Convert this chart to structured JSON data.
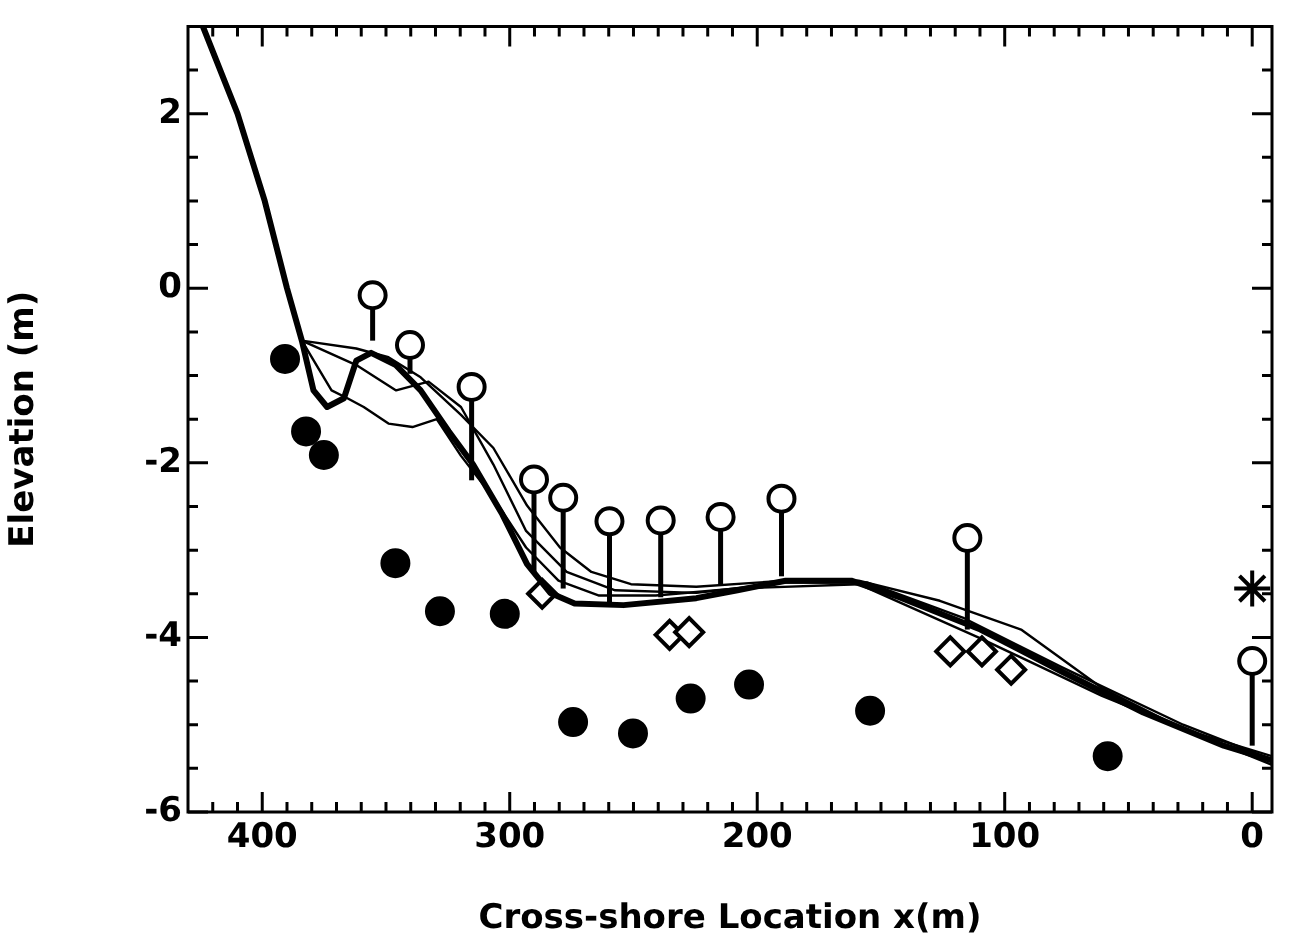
{
  "chart_data": {
    "type": "scatter",
    "xlabel": "Cross-shore Location x(m)",
    "ylabel": "Elevation (m)",
    "xlim": [
      430,
      -8
    ],
    "ylim": [
      -6,
      3
    ],
    "xticks": [
      {
        "value": 420,
        "label": null
      },
      {
        "value": 410,
        "label": null
      },
      400,
      {
        "value": 390,
        "label": null
      },
      {
        "value": 380,
        "label": null
      },
      {
        "value": 370,
        "label": null
      },
      {
        "value": 360,
        "label": null
      },
      {
        "value": 350,
        "label": null
      },
      {
        "value": 340,
        "label": null
      },
      {
        "value": 330,
        "label": null
      },
      {
        "value": 320,
        "label": null
      },
      {
        "value": 310,
        "label": null
      },
      300,
      {
        "value": 290,
        "label": null
      },
      {
        "value": 280,
        "label": null
      },
      {
        "value": 270,
        "label": null
      },
      {
        "value": 260,
        "label": null
      },
      {
        "value": 250,
        "label": null
      },
      {
        "value": 240,
        "label": null
      },
      {
        "value": 230,
        "label": null
      },
      {
        "value": 220,
        "label": null
      },
      {
        "value": 210,
        "label": null
      },
      200,
      {
        "value": 190,
        "label": null
      },
      {
        "value": 180,
        "label": null
      },
      {
        "value": 170,
        "label": null
      },
      {
        "value": 160,
        "label": null
      },
      {
        "value": 150,
        "label": null
      },
      {
        "value": 140,
        "label": null
      },
      {
        "value": 130,
        "label": null
      },
      {
        "value": 120,
        "label": null
      },
      {
        "value": 110,
        "label": null
      },
      100,
      {
        "value": 90,
        "label": null
      },
      {
        "value": 80,
        "label": null
      },
      {
        "value": 70,
        "label": null
      },
      {
        "value": 60,
        "label": null
      },
      {
        "value": 50,
        "label": null
      },
      {
        "value": 40,
        "label": null
      },
      {
        "value": 30,
        "label": null
      },
      {
        "value": 20,
        "label": null
      },
      {
        "value": 10,
        "label": null
      },
      0
    ],
    "yticks": [
      -6,
      {
        "value": -5.5,
        "label": null
      },
      {
        "value": -5,
        "label": null
      },
      {
        "value": -4.5,
        "label": null
      },
      -4,
      {
        "value": -3.5,
        "label": null
      },
      {
        "value": -3,
        "label": null
      },
      {
        "value": -2.5,
        "label": null
      },
      -2,
      {
        "value": -1.5,
        "label": null
      },
      {
        "value": -1,
        "label": null
      },
      {
        "value": -0.5,
        "label": null
      },
      0,
      {
        "value": 0.5,
        "label": null
      },
      {
        "value": 1,
        "label": null
      },
      {
        "value": 1.5,
        "label": null
      },
      2,
      {
        "value": 2.5,
        "label": null
      }
    ],
    "grid": false,
    "legend": false,
    "series": [
      {
        "type": "line",
        "color": "#000000",
        "marker": "none",
        "x": [
          424,
          410,
          399,
          390,
          384,
          379.3,
          373.8,
          367,
          362,
          356,
          346,
          336,
          324.6,
          314.8,
          303,
          293,
          283.6,
          273.8,
          254,
          224.6,
          208,
          188.5,
          162,
          142.6,
          109.8,
          77,
          44,
          11.5,
          -8
        ],
        "values": [
          3.0,
          2.0,
          1.0,
          0.0,
          -0.6,
          -1.17,
          -1.36,
          -1.26,
          -0.83,
          -0.74,
          -0.88,
          -1.17,
          -1.64,
          -2.02,
          -2.59,
          -3.16,
          -3.49,
          -3.61,
          -3.63,
          -3.55,
          -3.46,
          -3.35,
          -3.35,
          -3.54,
          -3.91,
          -4.39,
          -4.86,
          -5.24,
          -5.41
        ]
      },
      {
        "type": "line",
        "color": "#000000",
        "marker": "none",
        "x": [
          424,
          410,
          399,
          390,
          384,
          362,
          349,
          336,
          319.7,
          306.6,
          293,
          279.7,
          267,
          251,
          224.6,
          188.5,
          159,
          126.2,
          93.4,
          60.7,
          27.9,
          -8
        ],
        "values": [
          3.0,
          2.0,
          1.0,
          0.0,
          -0.6,
          -0.69,
          -0.79,
          -1.02,
          -1.45,
          -1.83,
          -2.49,
          -2.97,
          -3.25,
          -3.39,
          -3.42,
          -3.35,
          -3.35,
          -3.58,
          -3.91,
          -4.58,
          -5.05,
          -5.36
        ]
      },
      {
        "type": "line",
        "color": "#000000",
        "marker": "none",
        "x": [
          424,
          410,
          399,
          390,
          384,
          372,
          365.6,
          359,
          349,
          339.3,
          329.5,
          319.7,
          306.6,
          293.4,
          280.3,
          263.9,
          241,
          208.2,
          159,
          109.8,
          60.7,
          -8
        ],
        "values": [
          3.0,
          2.0,
          1.0,
          0.0,
          -0.6,
          -1.17,
          -1.26,
          -1.36,
          -1.55,
          -1.59,
          -1.5,
          -1.92,
          -2.4,
          -2.97,
          -3.35,
          -3.52,
          -3.52,
          -3.44,
          -3.39,
          -4.01,
          -4.67,
          -5.46
        ]
      },
      {
        "type": "line",
        "color": "#000000",
        "marker": "none",
        "x": [
          424,
          410,
          399,
          390,
          384,
          362,
          345.9,
          332.8,
          319.7,
          306.6,
          293.4,
          277,
          257.4,
          224.6,
          188.5,
          155.7,
          116.4,
          77,
          27.9,
          -8
        ],
        "values": [
          3.0,
          2.0,
          1.0,
          0.0,
          -0.6,
          -0.88,
          -1.17,
          -1.07,
          -1.36,
          -2.02,
          -2.78,
          -3.25,
          -3.46,
          -3.49,
          -3.37,
          -3.37,
          -3.78,
          -4.34,
          -5.0,
          -5.4
        ]
      },
      {
        "type": "scatter",
        "color": "#000000",
        "marker": "circle",
        "x": [
          390.8,
          382.3,
          375.1,
          346.2,
          328.2,
          302,
          274.4,
          250.2,
          226.9,
          203.3,
          154.4,
          58.4
        ],
        "values": [
          -0.81,
          -1.64,
          -1.91,
          -3.15,
          -3.7,
          -3.73,
          -4.97,
          -5.1,
          -4.7,
          -4.54,
          -4.84,
          -5.36
        ]
      },
      {
        "type": "scatter",
        "color": "#000000",
        "marker": "diamond",
        "x": [
          286.9,
          235.4,
          227.5,
          122,
          109.2,
          97.4
        ],
        "values": [
          -3.5,
          -3.97,
          -3.94,
          -4.16,
          -4.16,
          -4.37
        ]
      },
      {
        "type": "scatter",
        "color": "#000000",
        "marker": "circle",
        "x": [
          355.4,
          340.3,
          315.4,
          290.2,
          278.4,
          259.7,
          239,
          214.8,
          190.2,
          115.1,
          0
        ],
        "values": [
          -0.08,
          -0.65,
          -1.13,
          -2.19,
          -2.4,
          -2.67,
          -2.66,
          -2.62,
          -2.41,
          -2.86,
          -4.27
        ],
        "errors": [
          [
            -0.6,
            -0.08
          ],
          [
            -0.98,
            -0.65
          ],
          [
            -2.2,
            -1.13
          ],
          [
            -3.25,
            -2.19
          ],
          [
            -3.44,
            -2.4
          ],
          [
            -3.63,
            -2.67
          ],
          [
            -3.54,
            -2.66
          ],
          [
            -3.39,
            -2.62
          ],
          [
            -3.3,
            -2.41
          ],
          [
            -3.91,
            -2.86
          ],
          [
            -5.24,
            -4.27
          ]
        ]
      },
      {
        "type": "scatter",
        "color": "#000000",
        "marker": "cross",
        "x": [
          0
        ],
        "values": [
          -3.44
        ]
      }
    ]
  }
}
